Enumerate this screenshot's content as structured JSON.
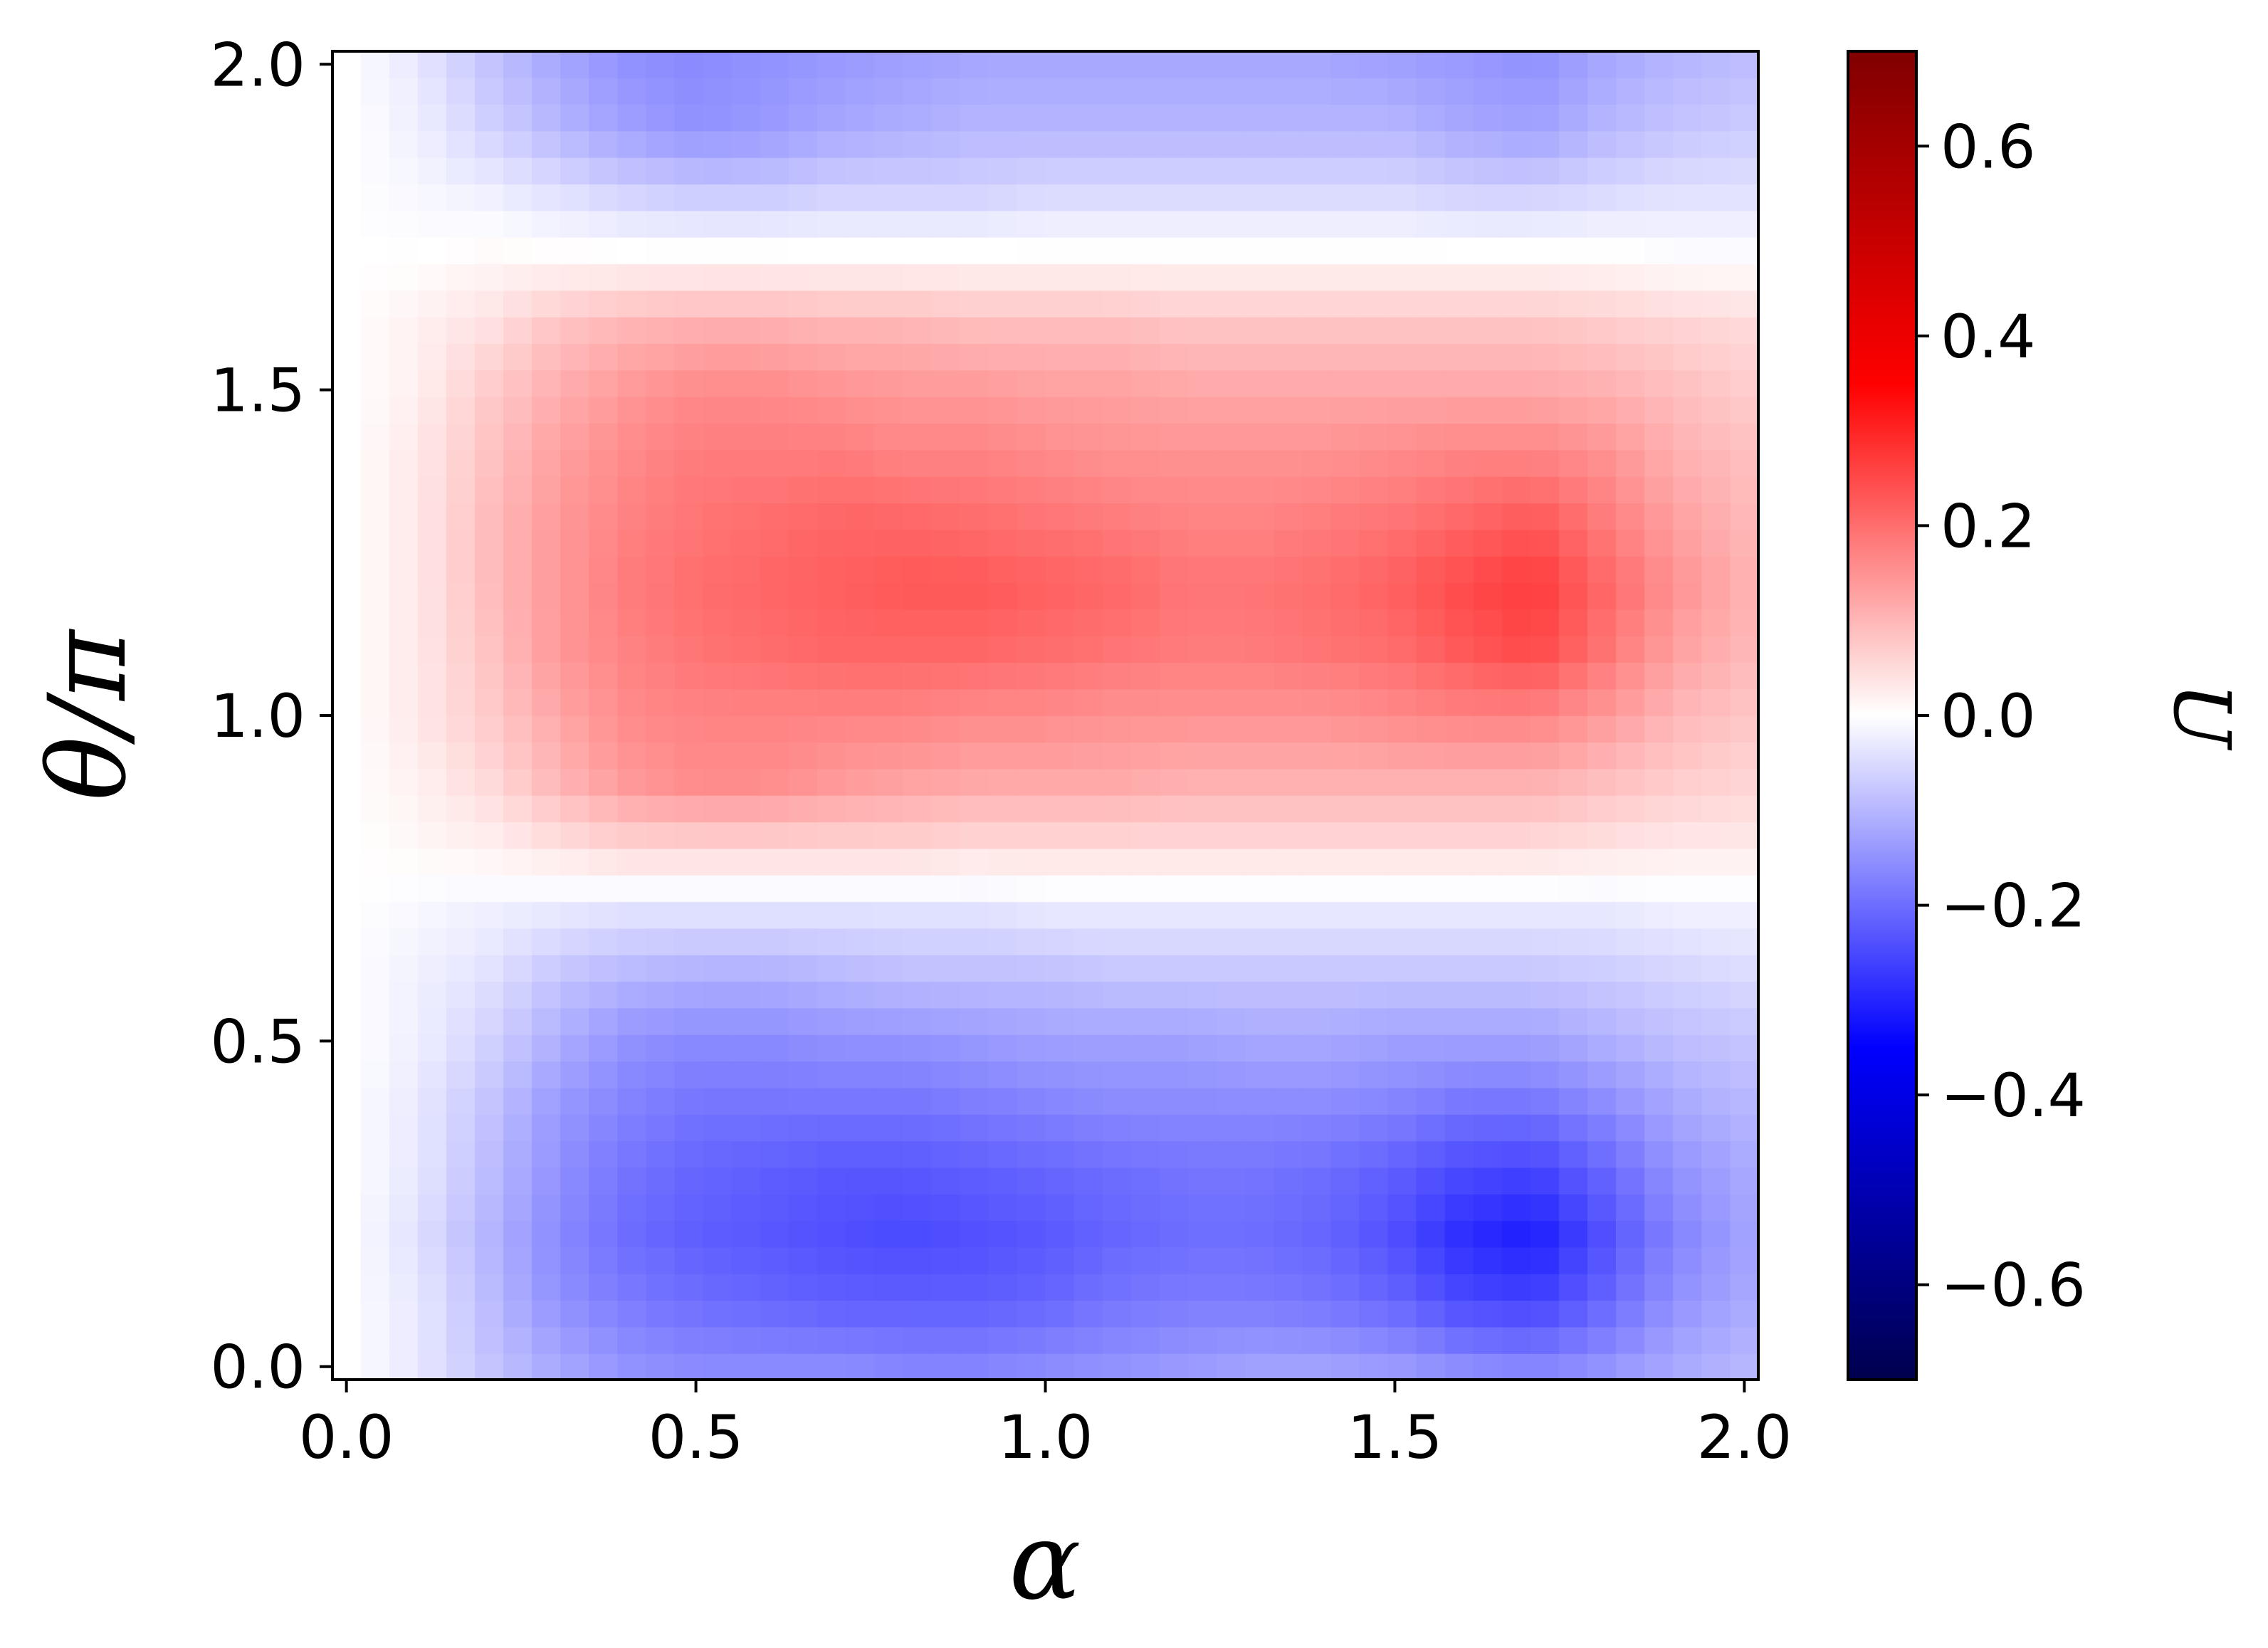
{
  "chart_data": {
    "type": "heatmap",
    "title": "",
    "xlabel": "α",
    "ylabel": "θ/π",
    "colorbar_label": "U",
    "colormap": "seismic",
    "xlim": [
      -0.02,
      2.02
    ],
    "ylim": [
      -0.02,
      2.02
    ],
    "x_ticks": [
      0.0,
      0.5,
      1.0,
      1.5,
      2.0
    ],
    "x_tick_labels": [
      "0.0",
      "0.5",
      "1.0",
      "1.5",
      "2.0"
    ],
    "y_ticks": [
      0.0,
      0.5,
      1.0,
      1.5,
      2.0
    ],
    "y_tick_labels": [
      "0.0",
      "0.5",
      "1.0",
      "1.5",
      "2.0"
    ],
    "colorbar_range": [
      -0.7,
      0.7
    ],
    "colorbar_ticks": [
      0.6,
      0.4,
      0.2,
      0.0,
      -0.2,
      -0.4,
      -0.6
    ],
    "colorbar_tick_labels": [
      "0.6",
      "0.4",
      "0.2",
      "0.0",
      "−0.2",
      "−0.4",
      "−0.6"
    ],
    "grid_x": [
      0.0,
      0.1,
      0.2,
      0.3,
      0.4,
      0.5,
      0.6,
      0.7,
      0.8,
      0.9,
      1.0,
      1.1,
      1.2,
      1.3,
      1.4,
      1.5,
      1.6,
      1.7,
      1.8,
      1.9,
      2.0
    ],
    "grid_y": [
      0.0,
      0.1,
      0.2,
      0.3,
      0.4,
      0.5,
      0.6,
      0.7,
      0.8,
      0.9,
      1.0,
      1.1,
      1.2,
      1.3,
      1.4,
      1.5,
      1.6,
      1.7,
      1.8,
      1.9,
      2.0
    ],
    "z": [
      [
        0.0,
        -0.03,
        -0.08,
        -0.12,
        -0.15,
        -0.16,
        -0.16,
        -0.16,
        -0.17,
        -0.17,
        -0.16,
        -0.15,
        -0.14,
        -0.13,
        -0.13,
        -0.14,
        -0.16,
        -0.17,
        -0.15,
        -0.12,
        -0.1
      ],
      [
        0.0,
        -0.03,
        -0.09,
        -0.15,
        -0.18,
        -0.2,
        -0.21,
        -0.22,
        -0.22,
        -0.22,
        -0.21,
        -0.19,
        -0.18,
        -0.18,
        -0.19,
        -0.21,
        -0.25,
        -0.26,
        -0.21,
        -0.15,
        -0.12
      ],
      [
        0.0,
        -0.04,
        -0.1,
        -0.16,
        -0.2,
        -0.22,
        -0.23,
        -0.24,
        -0.25,
        -0.24,
        -0.23,
        -0.21,
        -0.2,
        -0.2,
        -0.21,
        -0.24,
        -0.29,
        -0.31,
        -0.24,
        -0.17,
        -0.13
      ],
      [
        0.0,
        -0.03,
        -0.09,
        -0.15,
        -0.19,
        -0.21,
        -0.22,
        -0.23,
        -0.23,
        -0.22,
        -0.21,
        -0.2,
        -0.19,
        -0.19,
        -0.2,
        -0.22,
        -0.25,
        -0.26,
        -0.21,
        -0.15,
        -0.12
      ],
      [
        0.0,
        -0.03,
        -0.08,
        -0.14,
        -0.17,
        -0.19,
        -0.19,
        -0.19,
        -0.19,
        -0.18,
        -0.17,
        -0.16,
        -0.16,
        -0.16,
        -0.16,
        -0.17,
        -0.19,
        -0.19,
        -0.16,
        -0.12,
        -0.1
      ],
      [
        0.0,
        -0.02,
        -0.06,
        -0.11,
        -0.15,
        -0.16,
        -0.16,
        -0.15,
        -0.15,
        -0.14,
        -0.13,
        -0.13,
        -0.13,
        -0.12,
        -0.12,
        -0.13,
        -0.13,
        -0.13,
        -0.11,
        -0.09,
        -0.08
      ],
      [
        0.0,
        -0.02,
        -0.04,
        -0.08,
        -0.1,
        -0.11,
        -0.11,
        -0.1,
        -0.09,
        -0.09,
        -0.09,
        -0.08,
        -0.08,
        -0.08,
        -0.08,
        -0.08,
        -0.08,
        -0.08,
        -0.07,
        -0.06,
        -0.05
      ],
      [
        0.0,
        -0.01,
        -0.02,
        -0.03,
        -0.04,
        -0.04,
        -0.04,
        -0.04,
        -0.04,
        -0.04,
        -0.03,
        -0.03,
        -0.03,
        -0.03,
        -0.03,
        -0.03,
        -0.03,
        -0.03,
        -0.03,
        -0.02,
        -0.02
      ],
      [
        0.0,
        0.01,
        0.02,
        0.04,
        0.06,
        0.06,
        0.06,
        0.06,
        0.06,
        0.05,
        0.05,
        0.05,
        0.05,
        0.05,
        0.05,
        0.05,
        0.05,
        0.05,
        0.04,
        0.03,
        0.03
      ],
      [
        0.0,
        0.02,
        0.05,
        0.1,
        0.14,
        0.16,
        0.16,
        0.14,
        0.13,
        0.12,
        0.12,
        0.12,
        0.11,
        0.11,
        0.11,
        0.11,
        0.11,
        0.11,
        0.09,
        0.07,
        0.06
      ],
      [
        0.0,
        0.03,
        0.07,
        0.12,
        0.16,
        0.17,
        0.17,
        0.17,
        0.17,
        0.16,
        0.16,
        0.15,
        0.15,
        0.15,
        0.15,
        0.16,
        0.17,
        0.17,
        0.14,
        0.1,
        0.08
      ],
      [
        0.0,
        0.03,
        0.08,
        0.14,
        0.17,
        0.19,
        0.2,
        0.21,
        0.21,
        0.21,
        0.2,
        0.19,
        0.18,
        0.18,
        0.19,
        0.2,
        0.23,
        0.25,
        0.19,
        0.13,
        0.1
      ],
      [
        0.0,
        0.03,
        0.09,
        0.14,
        0.18,
        0.2,
        0.21,
        0.22,
        0.23,
        0.23,
        0.22,
        0.21,
        0.19,
        0.19,
        0.2,
        0.22,
        0.25,
        0.27,
        0.21,
        0.15,
        0.11
      ],
      [
        0.0,
        0.03,
        0.09,
        0.14,
        0.17,
        0.19,
        0.2,
        0.21,
        0.21,
        0.2,
        0.19,
        0.18,
        0.17,
        0.17,
        0.18,
        0.19,
        0.21,
        0.23,
        0.18,
        0.13,
        0.1
      ],
      [
        0.0,
        0.03,
        0.08,
        0.13,
        0.16,
        0.18,
        0.18,
        0.18,
        0.17,
        0.17,
        0.16,
        0.15,
        0.15,
        0.15,
        0.15,
        0.16,
        0.17,
        0.17,
        0.15,
        0.11,
        0.09
      ],
      [
        0.0,
        0.02,
        0.07,
        0.11,
        0.14,
        0.16,
        0.16,
        0.15,
        0.14,
        0.14,
        0.13,
        0.13,
        0.12,
        0.12,
        0.12,
        0.12,
        0.12,
        0.12,
        0.11,
        0.09,
        0.07
      ],
      [
        0.0,
        0.02,
        0.04,
        0.08,
        0.1,
        0.11,
        0.11,
        0.1,
        0.1,
        0.09,
        0.09,
        0.09,
        0.08,
        0.08,
        0.08,
        0.08,
        0.08,
        0.08,
        0.07,
        0.06,
        0.05
      ],
      [
        0.0,
        0.0,
        0.01,
        0.01,
        0.01,
        0.01,
        0.01,
        0.01,
        0.01,
        0.01,
        0.01,
        0.01,
        0.01,
        0.01,
        0.01,
        0.01,
        0.01,
        0.01,
        0.01,
        0.0,
        0.0
      ],
      [
        0.0,
        -0.01,
        -0.02,
        -0.04,
        -0.06,
        -0.07,
        -0.07,
        -0.06,
        -0.06,
        -0.06,
        -0.05,
        -0.05,
        -0.05,
        -0.05,
        -0.05,
        -0.05,
        -0.06,
        -0.06,
        -0.05,
        -0.04,
        -0.04
      ],
      [
        0.0,
        -0.02,
        -0.06,
        -0.1,
        -0.13,
        -0.15,
        -0.14,
        -0.12,
        -0.11,
        -0.1,
        -0.1,
        -0.1,
        -0.1,
        -0.1,
        -0.1,
        -0.1,
        -0.12,
        -0.13,
        -0.1,
        -0.08,
        -0.07
      ],
      [
        0.0,
        -0.03,
        -0.08,
        -0.12,
        -0.15,
        -0.16,
        -0.15,
        -0.14,
        -0.13,
        -0.12,
        -0.12,
        -0.12,
        -0.12,
        -0.12,
        -0.12,
        -0.13,
        -0.14,
        -0.15,
        -0.12,
        -0.1,
        -0.09
      ]
    ]
  }
}
